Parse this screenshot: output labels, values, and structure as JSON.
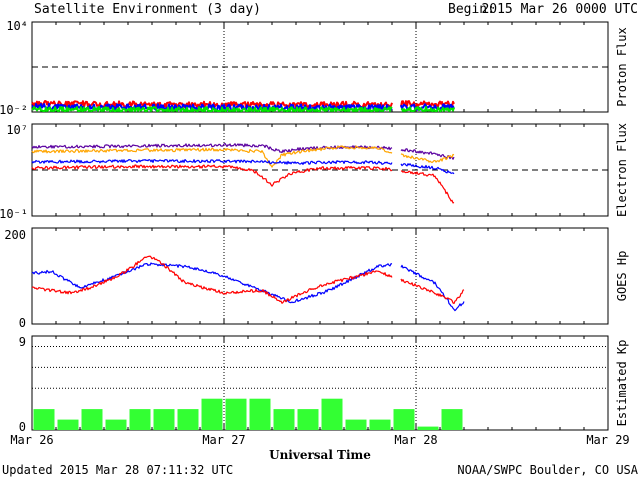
{
  "header": {
    "title": "Satellite Environment (3 day)",
    "begin_label": "Begin:",
    "begin_value": "2015 Mar 26 0000 UTC"
  },
  "footer": {
    "updated": "Updated 2015 Mar 28 07:11:32 UTC",
    "credit": "NOAA/SWPC Boulder, CO USA"
  },
  "colors": {
    "red": "#ff0000",
    "blue": "#0000ff",
    "green": "#00e600",
    "orange": "#ffa500",
    "purple": "#5a00a0",
    "kp_bar": "#33ff33"
  },
  "chart_data": [
    {
      "type": "line",
      "ylabel": "Proton Flux",
      "yscale": "log",
      "ylim": [
        0.01,
        10000
      ],
      "ytick_labels": [
        "10⁴",
        "10⁻²"
      ],
      "threshold": 10,
      "x_range_days": [
        0,
        3
      ],
      "data_gaps": [
        [
          1.88,
          1.92
        ]
      ],
      "series": [
        {
          "color": "red",
          "x": [
            0,
            0.5,
            1.0,
            1.5,
            1.88,
            1.92,
            2.2
          ],
          "y": [
            0.035,
            0.032,
            0.03,
            0.03,
            0.031,
            0.034,
            0.033
          ]
        },
        {
          "color": "blue",
          "x": [
            0,
            0.5,
            1.0,
            1.5,
            1.88,
            1.92,
            2.2
          ],
          "y": [
            0.022,
            0.021,
            0.02,
            0.02,
            0.02,
            0.021,
            0.021
          ]
        },
        {
          "color": "green",
          "x": [
            0,
            0.5,
            1.0,
            1.5,
            1.88,
            1.92,
            2.2
          ],
          "y": [
            0.014,
            0.014,
            0.013,
            0.013,
            0.013,
            0.014,
            0.014
          ]
        }
      ]
    },
    {
      "type": "line",
      "ylabel": "Electron Flux",
      "yscale": "log",
      "ylim": [
        0.1,
        10000000
      ],
      "ytick_labels": [
        "10⁷",
        "10⁻¹"
      ],
      "threshold": 1000,
      "x_range_days": [
        0,
        3
      ],
      "series": [
        {
          "color": "purple",
          "x": [
            0,
            0.5,
            1.0,
            1.2,
            1.3,
            1.4,
            1.6,
            1.8,
            1.9,
            2.1,
            2.2
          ],
          "y": [
            100000,
            120000,
            150000,
            130000,
            40000,
            70000,
            100000,
            90000,
            70000,
            25000,
            10000
          ]
        },
        {
          "color": "orange",
          "x": [
            0,
            0.5,
            1.0,
            1.2,
            1.25,
            1.3,
            1.4,
            1.6,
            1.8,
            1.9,
            2.1,
            2.2
          ],
          "y": [
            40000,
            50000,
            60000,
            40000,
            1500,
            20000,
            40000,
            100000,
            80000,
            25000,
            5000,
            20000
          ]
        },
        {
          "color": "blue",
          "x": [
            0,
            0.5,
            1.0,
            1.2,
            1.4,
            1.6,
            1.8,
            1.9,
            2.1,
            2.2
          ],
          "y": [
            5000,
            6000,
            6000,
            5000,
            4000,
            5000,
            4500,
            3500,
            1500,
            500
          ]
        },
        {
          "color": "red",
          "x": [
            0,
            0.5,
            1.0,
            1.15,
            1.25,
            1.35,
            1.5,
            1.8,
            1.9,
            2.1,
            2.2
          ],
          "y": [
            1500,
            2000,
            2000,
            1000,
            50,
            500,
            1500,
            1500,
            1000,
            300,
            1
          ]
        }
      ]
    },
    {
      "type": "line",
      "ylabel": "GOES Hp",
      "ylim": [
        0,
        200
      ],
      "yticks": [
        0,
        200
      ],
      "x_range_days": [
        0,
        3
      ],
      "series": [
        {
          "color": "blue",
          "x": [
            0,
            0.1,
            0.25,
            0.4,
            0.6,
            0.8,
            1.0,
            1.2,
            1.35,
            1.55,
            1.8,
            1.9,
            2.1,
            2.2,
            2.25
          ],
          "y": [
            105,
            110,
            75,
            95,
            125,
            120,
            100,
            70,
            45,
            70,
            120,
            125,
            85,
            30,
            45
          ]
        },
        {
          "color": "red",
          "x": [
            0,
            0.2,
            0.3,
            0.45,
            0.6,
            0.65,
            0.8,
            1.0,
            1.2,
            1.3,
            1.5,
            1.8,
            1.9,
            2.1,
            2.2,
            2.25
          ],
          "y": [
            75,
            65,
            75,
            100,
            140,
            135,
            85,
            65,
            70,
            45,
            80,
            110,
            95,
            65,
            45,
            70
          ]
        }
      ]
    },
    {
      "type": "bar",
      "ylabel": "Estimated Kp",
      "ylim": [
        0,
        9
      ],
      "yticks": [
        0,
        9
      ],
      "x_range_days": [
        0,
        3
      ],
      "interval_hours": 3,
      "values": [
        2,
        1,
        2,
        1,
        2,
        2,
        2,
        3,
        3,
        3,
        2,
        2,
        3,
        1,
        1,
        2,
        0.33,
        2
      ]
    }
  ],
  "x_axis": {
    "label": "Universal Time",
    "ticks": [
      "Mar 26",
      "Mar 27",
      "Mar 28",
      "Mar 29"
    ]
  }
}
